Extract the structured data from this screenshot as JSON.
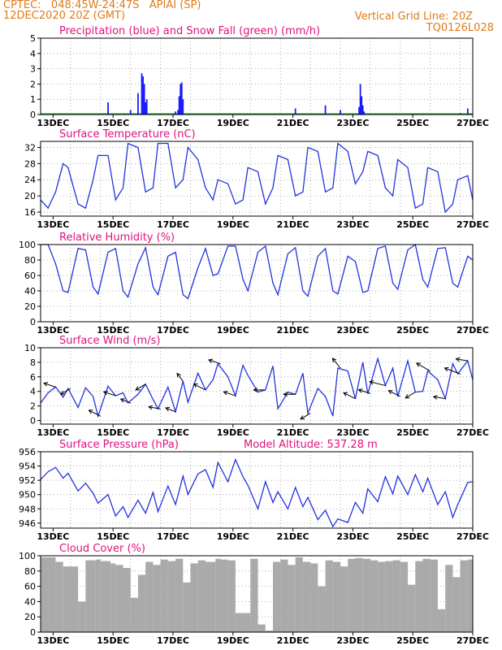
{
  "header": {
    "line1": "CPTEC:   048:45W-24:47S   APIAI (SP)",
    "line2": "12DEC2020 20Z (GMT)",
    "grid_note": "Vertical Grid Line: 20Z",
    "code": "TQ0126L028"
  },
  "x_tick_labels": [
    "13DEC",
    "15DEC",
    "17DEC",
    "19DEC",
    "21DEC",
    "23DEC",
    "25DEC",
    "27DEC"
  ],
  "chart_data": [
    {
      "id": "precip",
      "type": "bar",
      "title": "Precipitation (blue) and Snow Fall (green) (mm/h)",
      "ylim": [
        0,
        5
      ],
      "yticks": [
        0,
        1,
        2,
        3,
        4,
        5
      ],
      "x_unit": "hours since 12DEC2020 20Z",
      "series": [
        {
          "values_at": [
            [
              54,
              0.8
            ],
            [
              72,
              0.3
            ],
            [
              78,
              1.4
            ],
            [
              81,
              2.7
            ],
            [
              82,
              2.5
            ],
            [
              83,
              2.0
            ],
            [
              84,
              0.8
            ],
            [
              85,
              1.0
            ],
            [
              108,
              0.2
            ],
            [
              110,
              0.3
            ],
            [
              111,
              1.2
            ],
            [
              112,
              2.0
            ],
            [
              113,
              2.1
            ],
            [
              114,
              1.0
            ],
            [
              204,
              0.4
            ],
            [
              228,
              0.6
            ],
            [
              240,
              0.3
            ],
            [
              255,
              0.5
            ],
            [
              256,
              2.0
            ],
            [
              257,
              1.2
            ],
            [
              258,
              0.6
            ],
            [
              259,
              0.2
            ],
            [
              336,
              0.1
            ],
            [
              342,
              0.4
            ]
          ]
        }
      ],
      "color": "#1a1aff",
      "snow_color": "#1fa81f"
    },
    {
      "id": "temp",
      "type": "line",
      "title": "Surface Temperature (nC)",
      "ylim": [
        15,
        33.5
      ],
      "yticks": [
        16,
        20,
        24,
        28,
        32
      ],
      "x": [
        0,
        6,
        12,
        18,
        22,
        30,
        36,
        42,
        46,
        54,
        60,
        66,
        70,
        78,
        84,
        90,
        94,
        102,
        108,
        114,
        118,
        126,
        132,
        138,
        142,
        150,
        156,
        162,
        166,
        174,
        180,
        186,
        190,
        198,
        204,
        210,
        214,
        222,
        228,
        234,
        238,
        246,
        252,
        258,
        262,
        270,
        276,
        282,
        286,
        294,
        300,
        306,
        310,
        318,
        324,
        330,
        334,
        342,
        346
      ],
      "values": [
        19,
        17,
        21,
        28,
        27,
        18,
        17,
        24,
        30,
        30,
        19,
        22,
        33,
        32,
        21,
        22,
        33,
        33,
        22,
        24,
        32,
        29,
        22,
        19,
        24,
        23,
        18,
        19,
        27,
        26,
        18,
        22,
        30,
        29,
        20,
        21,
        32,
        31,
        21,
        22,
        33,
        31,
        23,
        26,
        31,
        30,
        22,
        20,
        29,
        27,
        17,
        18,
        27,
        26,
        16,
        18,
        24,
        25,
        19
      ],
      "color": "#2233dd"
    },
    {
      "id": "rh",
      "type": "line",
      "title": "Relative Humidity (%)",
      "ylim": [
        0,
        100
      ],
      "yticks": [
        0,
        20,
        40,
        60,
        80,
        100
      ],
      "x": [
        0,
        6,
        12,
        18,
        22,
        30,
        36,
        42,
        46,
        54,
        60,
        66,
        70,
        78,
        84,
        90,
        94,
        102,
        108,
        114,
        118,
        126,
        132,
        138,
        142,
        150,
        156,
        162,
        166,
        174,
        180,
        186,
        190,
        198,
        204,
        210,
        214,
        222,
        228,
        234,
        238,
        246,
        252,
        258,
        262,
        270,
        276,
        282,
        286,
        294,
        300,
        306,
        310,
        318,
        324,
        330,
        334,
        342,
        346
      ],
      "values": [
        100,
        100,
        75,
        40,
        38,
        95,
        93,
        45,
        36,
        90,
        95,
        40,
        32,
        75,
        96,
        45,
        35,
        85,
        90,
        35,
        30,
        70,
        95,
        60,
        62,
        98,
        98,
        55,
        40,
        90,
        98,
        50,
        35,
        88,
        96,
        40,
        33,
        85,
        95,
        40,
        36,
        85,
        78,
        38,
        40,
        95,
        98,
        50,
        42,
        93,
        100,
        55,
        45,
        95,
        96,
        50,
        45,
        85,
        80
      ],
      "color": "#2233dd"
    },
    {
      "id": "wind",
      "type": "line",
      "title": "Surface Wind (m/s)",
      "ylim": [
        -0.5,
        10
      ],
      "yticks": [
        0,
        2,
        4,
        6,
        8,
        10
      ],
      "x": [
        0,
        6,
        12,
        18,
        22,
        30,
        36,
        42,
        46,
        54,
        60,
        66,
        70,
        78,
        84,
        90,
        94,
        102,
        108,
        114,
        118,
        126,
        132,
        138,
        142,
        150,
        156,
        162,
        166,
        174,
        180,
        186,
        190,
        198,
        204,
        210,
        214,
        222,
        228,
        234,
        238,
        246,
        252,
        258,
        262,
        270,
        276,
        282,
        286,
        294,
        300,
        306,
        310,
        318,
        324,
        330,
        334,
        342,
        346
      ],
      "values": [
        2.4,
        3.8,
        4.6,
        3.2,
        4.4,
        1.8,
        4.5,
        3.3,
        0.6,
        4.7,
        3.4,
        3.8,
        2.4,
        3.6,
        5.0,
        2.9,
        1.6,
        4.6,
        1.2,
        5.4,
        2.5,
        6.5,
        4.2,
        5.6,
        7.8,
        6.0,
        3.4,
        7.6,
        6.2,
        3.9,
        4.2,
        7.5,
        1.6,
        3.9,
        3.6,
        6.5,
        1.0,
        4.4,
        3.3,
        0.6,
        7.2,
        6.8,
        3.0,
        8.0,
        3.7,
        8.5,
        4.8,
        7.2,
        3.3,
        8.2,
        3.9,
        4.0,
        6.8,
        5.6,
        3.0,
        7.8,
        6.4,
        8.2,
        5.6
      ],
      "arrows_at": [
        [
          12,
          -6,
          2
        ],
        [
          24,
          -5,
          -3
        ],
        [
          48,
          -6,
          3
        ],
        [
          60,
          -6,
          2
        ],
        [
          72,
          -5,
          2
        ],
        [
          84,
          -5,
          -3
        ],
        [
          96,
          -6,
          1
        ],
        [
          108,
          -5,
          2
        ],
        [
          114,
          -3,
          4
        ],
        [
          132,
          -6,
          3
        ],
        [
          144,
          -6,
          2
        ],
        [
          156,
          -6,
          2
        ],
        [
          180,
          -6,
          0
        ],
        [
          204,
          -6,
          0
        ],
        [
          216,
          -5,
          -3
        ],
        [
          240,
          -4,
          5
        ],
        [
          252,
          -6,
          3
        ],
        [
          264,
          -6,
          2
        ],
        [
          276,
          -8,
          2
        ],
        [
          288,
          -6,
          3
        ],
        [
          300,
          -5,
          -3
        ],
        [
          312,
          -7,
          4
        ],
        [
          324,
          -6,
          1
        ],
        [
          336,
          -8,
          3
        ],
        [
          342,
          -6,
          1
        ]
      ],
      "color": "#2233dd"
    },
    {
      "id": "pressure",
      "type": "line",
      "title": "Surface Pressure (hPa)",
      "annotation": "Model Altitude: 537.28 m",
      "ylim": [
        945.3,
        956
      ],
      "yticks": [
        946,
        948,
        950,
        952,
        954,
        956
      ],
      "x": [
        0,
        6,
        12,
        18,
        22,
        30,
        36,
        42,
        46,
        54,
        60,
        66,
        70,
        78,
        84,
        90,
        94,
        102,
        108,
        114,
        118,
        126,
        132,
        138,
        142,
        150,
        156,
        162,
        166,
        174,
        180,
        186,
        190,
        198,
        204,
        210,
        214,
        222,
        228,
        234,
        238,
        246,
        252,
        258,
        262,
        270,
        276,
        282,
        286,
        294,
        300,
        306,
        310,
        318,
        324,
        330,
        334,
        342,
        346
      ],
      "values": [
        952.1,
        953.2,
        953.8,
        952.3,
        953.0,
        950.5,
        951.6,
        950.2,
        948.8,
        950.0,
        947.0,
        948.3,
        946.8,
        949.2,
        947.4,
        950.3,
        947.6,
        951.2,
        948.6,
        952.6,
        950.0,
        952.9,
        953.5,
        951.0,
        954.5,
        951.8,
        954.9,
        952.5,
        951.3,
        948.0,
        951.8,
        948.9,
        950.4,
        948.0,
        951.0,
        948.3,
        949.6,
        946.5,
        947.8,
        945.5,
        946.6,
        946.1,
        948.9,
        947.4,
        950.8,
        949.0,
        952.5,
        950.1,
        952.6,
        950.0,
        952.8,
        950.4,
        952.3,
        948.6,
        950.4,
        946.8,
        948.6,
        951.7,
        951.8
      ],
      "color": "#2233dd"
    },
    {
      "id": "cloud",
      "type": "bar",
      "title": "Cloud Cover (%)",
      "ylim": [
        0,
        100
      ],
      "yticks": [
        0,
        20,
        40,
        60,
        80,
        100
      ],
      "x": [
        0,
        12,
        18,
        30,
        36,
        44,
        48,
        56,
        60,
        66,
        72,
        78,
        84,
        90,
        96,
        102,
        108,
        114,
        120,
        126,
        132,
        140,
        144,
        150,
        156,
        168,
        174,
        180,
        186,
        192,
        198,
        204,
        210,
        216,
        222,
        228,
        234,
        240,
        246,
        252,
        258,
        264,
        270,
        276,
        282,
        288,
        294,
        300,
        306,
        312,
        318,
        324,
        330,
        336,
        342,
        346
      ],
      "values": [
        98,
        92,
        86,
        40,
        94,
        95,
        93,
        90,
        88,
        84,
        45,
        75,
        92,
        88,
        95,
        93,
        96,
        65,
        90,
        94,
        92,
        96,
        95,
        94,
        25,
        96,
        10,
        2,
        92,
        95,
        88,
        98,
        92,
        90,
        60,
        94,
        92,
        86,
        96,
        97,
        96,
        94,
        92,
        93,
        94,
        92,
        62,
        93,
        96,
        95,
        30,
        88,
        72,
        94,
        95,
        98
      ],
      "color": "#aaaaaa"
    }
  ]
}
